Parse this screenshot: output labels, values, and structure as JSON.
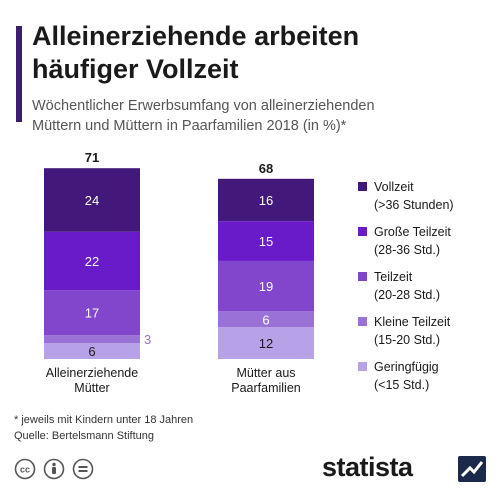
{
  "header": {
    "title_line1": "Alleinerziehende arbeiten",
    "title_line2": "häufiger Vollzeit",
    "subtitle_line1": "Wöchentlicher Erwerbsumfang von alleinerziehenden",
    "subtitle_line2": "Müttern und Müttern in Paarfamilien 2018 (in %)*"
  },
  "chart_data": {
    "type": "bar",
    "stacked": true,
    "categories": [
      [
        "Alleinerziehende",
        "Mütter"
      ],
      [
        "Mütter aus",
        "Paarfamilien"
      ]
    ],
    "totals": [
      "71",
      "68"
    ],
    "series": [
      {
        "name": "Vollzeit (>36 Stunden)",
        "legend": [
          "Vollzeit",
          "(>36 Stunden)"
        ],
        "color": "#42197a",
        "values": [
          24,
          16
        ]
      },
      {
        "name": "Große Teilzeit (28-36 Std.)",
        "legend": [
          "Große Teilzeit",
          "(28-36 Std.)"
        ],
        "color": "#6a1bc9",
        "values": [
          22,
          15
        ]
      },
      {
        "name": "Teilzeit (20-28 Std.)",
        "legend": [
          "Teilzeit",
          "(20-28 Std.)"
        ],
        "color": "#8146cc",
        "values": [
          17,
          19
        ]
      },
      {
        "name": "Kleine Teilzeit (15-20 Std.)",
        "legend": [
          "Kleine Teilzeit",
          "(15-20 Std.)"
        ],
        "color": "#9a71d6",
        "values": [
          3,
          6
        ]
      },
      {
        "name": "Geringfügig (<15 Std.)",
        "legend": [
          "Geringfügig",
          "(<15 Std.)"
        ],
        "color": "#b7a2e8",
        "values": [
          6,
          12
        ]
      }
    ],
    "value_labels": [
      [
        "24",
        "22",
        "17",
        "3",
        "6"
      ],
      [
        "16",
        "15",
        "19",
        "6",
        "12"
      ]
    ]
  },
  "footer": {
    "footnote": "* jeweils mit Kindern unter 18 Jahren",
    "source": "Quelle: Bertelsmann Stiftung",
    "brand": "statista"
  }
}
